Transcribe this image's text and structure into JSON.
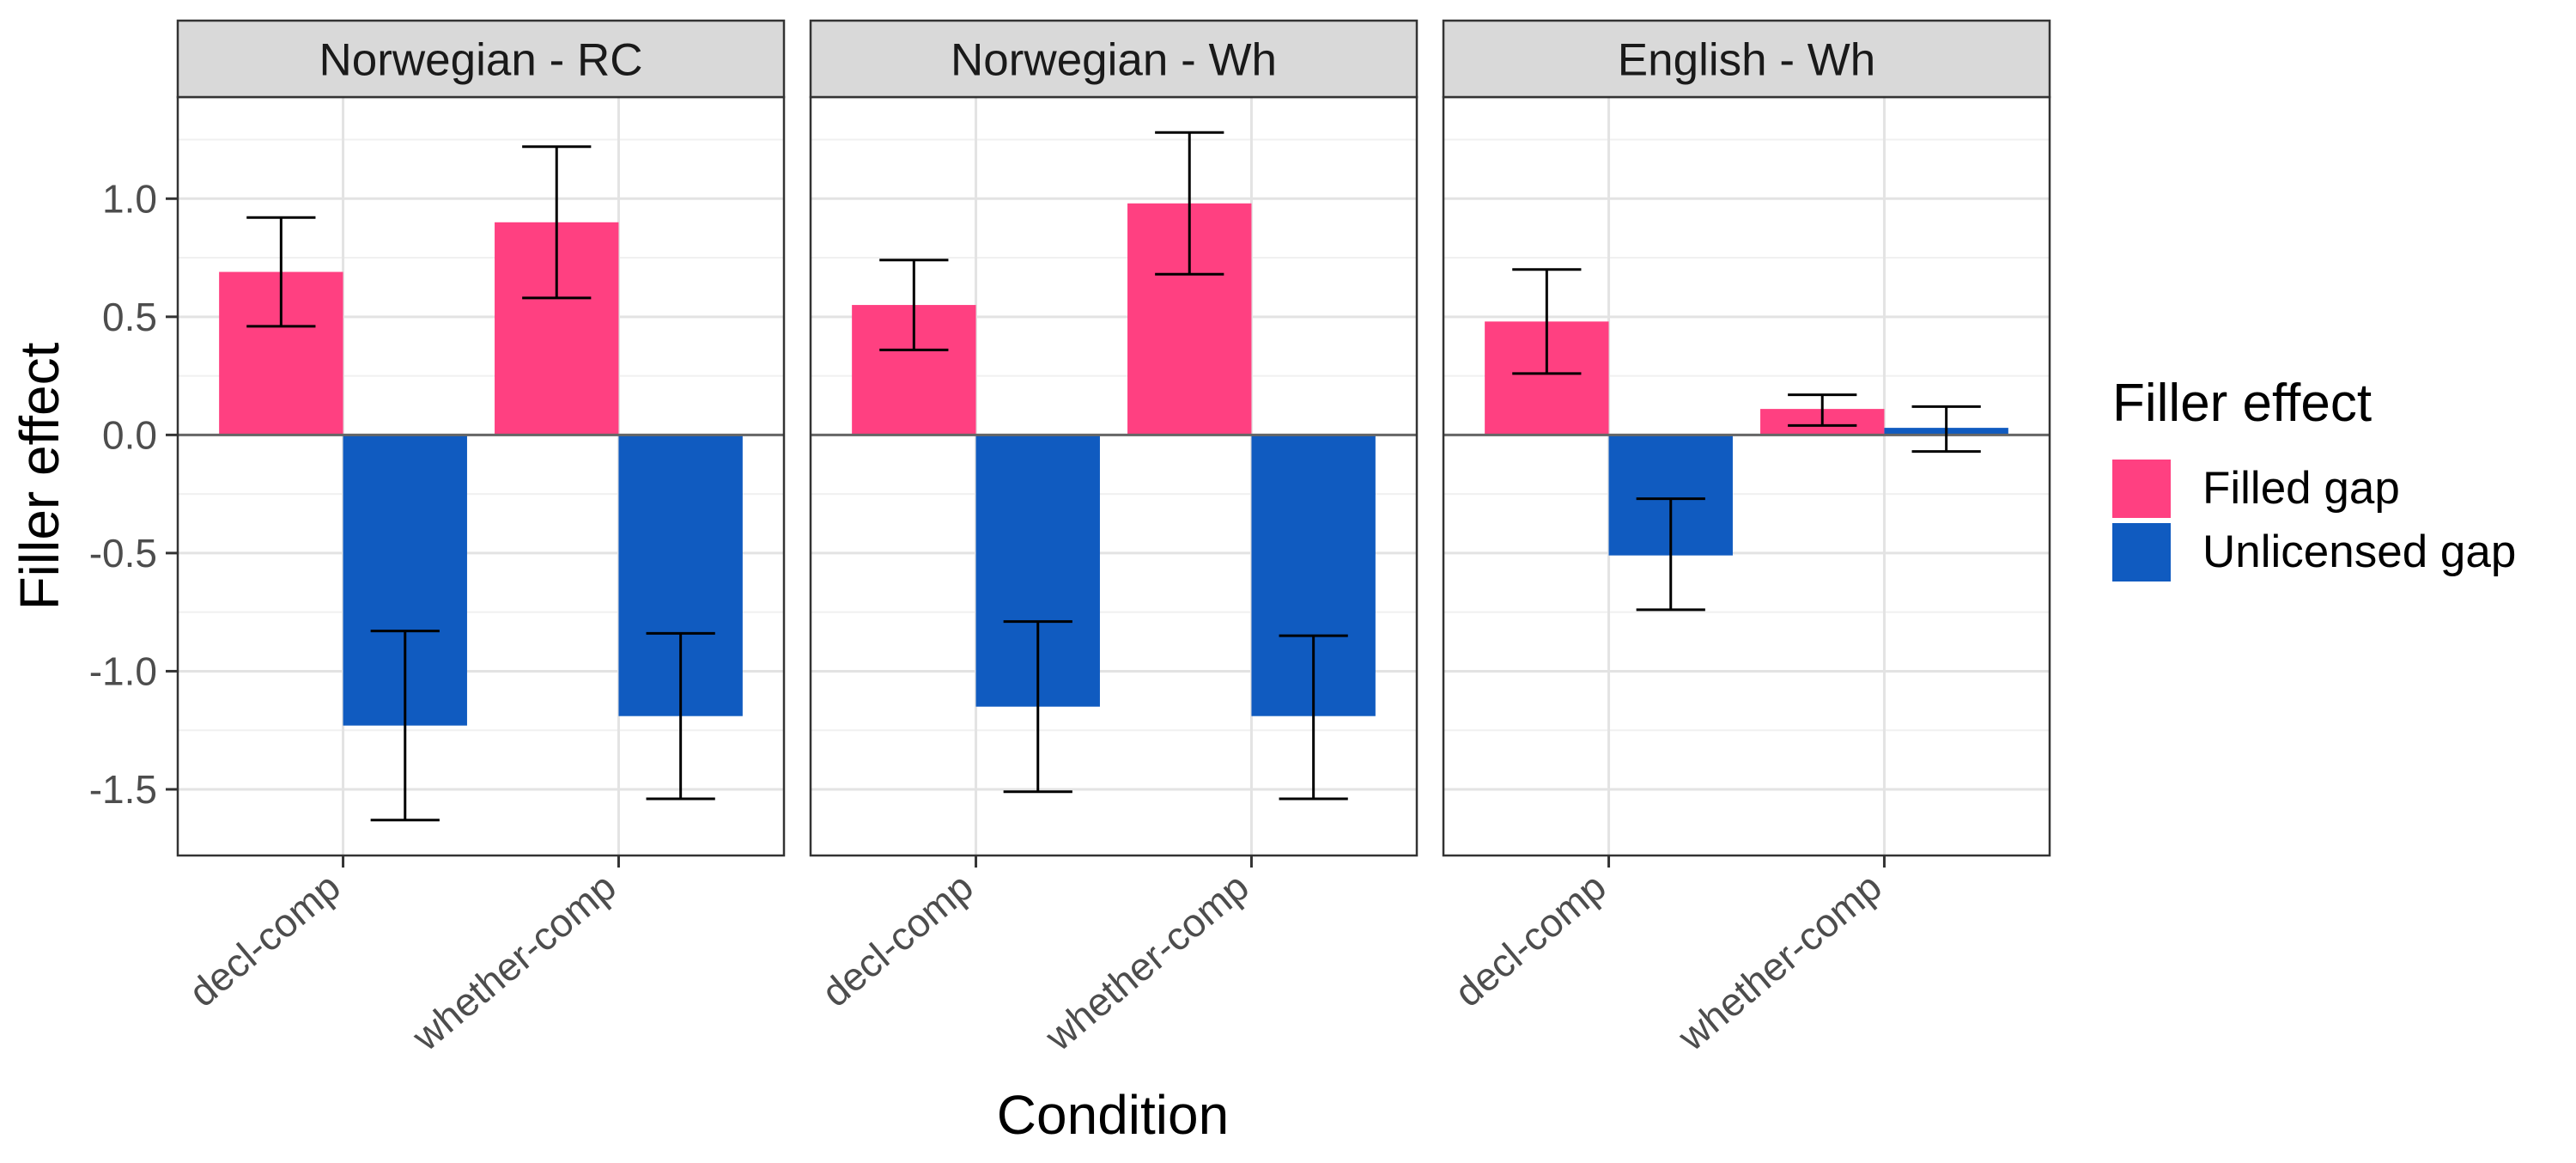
{
  "chart_data": {
    "type": "bar",
    "xlabel": "Condition",
    "ylabel": "Filler effect",
    "ylim": [
      -1.78,
      1.43
    ],
    "yticks": [
      1.0,
      0.5,
      0.0,
      -0.5,
      -1.0,
      -1.5
    ],
    "ytick_labels": [
      "1.0",
      "0.5",
      "0.0",
      "-0.5",
      "-1.0",
      "-1.5"
    ],
    "grid": true,
    "legend": {
      "title": "Filler effect",
      "placement": "right",
      "items": [
        {
          "name": "Filled gap",
          "color": "#FF4081"
        },
        {
          "name": "Unlicensed gap",
          "color": "#105BC0"
        }
      ]
    },
    "categories": [
      "decl-comp",
      "whether-comp"
    ],
    "panels": [
      {
        "title": "Norwegian - RC",
        "series": [
          {
            "name": "Filled gap",
            "values": [
              0.69,
              0.9
            ],
            "err_low": [
              0.46,
              0.58
            ],
            "err_high": [
              0.92,
              1.22
            ]
          },
          {
            "name": "Unlicensed gap",
            "values": [
              -1.23,
              -1.19
            ],
            "err_low": [
              -1.63,
              -1.54
            ],
            "err_high": [
              -0.83,
              -0.84
            ]
          }
        ]
      },
      {
        "title": "Norwegian - Wh",
        "series": [
          {
            "name": "Filled gap",
            "values": [
              0.55,
              0.98
            ],
            "err_low": [
              0.36,
              0.68
            ],
            "err_high": [
              0.74,
              1.28
            ]
          },
          {
            "name": "Unlicensed gap",
            "values": [
              -1.15,
              -1.19
            ],
            "err_low": [
              -1.51,
              -1.54
            ],
            "err_high": [
              -0.79,
              -0.85
            ]
          }
        ]
      },
      {
        "title": "English - Wh",
        "series": [
          {
            "name": "Filled gap",
            "values": [
              0.48,
              0.11
            ],
            "err_low": [
              0.26,
              0.04
            ],
            "err_high": [
              0.7,
              0.17
            ]
          },
          {
            "name": "Unlicensed gap",
            "values": [
              -0.51,
              0.03
            ],
            "err_low": [
              -0.74,
              -0.07
            ],
            "err_high": [
              -0.27,
              0.12
            ]
          }
        ]
      }
    ]
  }
}
